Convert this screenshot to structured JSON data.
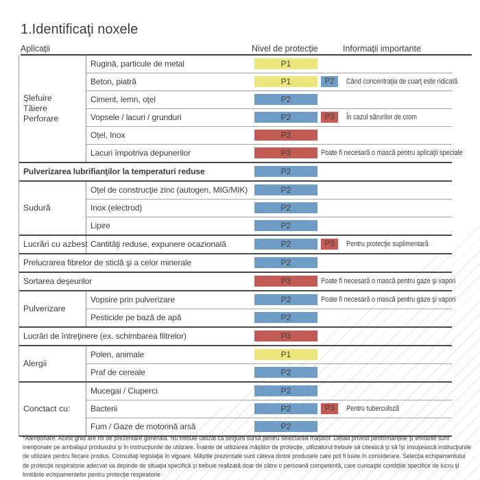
{
  "title": "1.Identificaţi noxele",
  "columns": {
    "applications": "Aplicaţii",
    "protection_level": "Nivel de protecţie",
    "important_info": "Informaţii importante"
  },
  "colors": {
    "p1": "#ebe77d",
    "p2": "#6f9dc6",
    "p3": "#c15b53",
    "rule_dark": "#4a4a4a",
    "rule_light": "#a3a3a3"
  },
  "table": {
    "groups": [
      {
        "category": "Şlefuire\nTăiere\nPerforare",
        "rows": [
          {
            "label": "Rugină, particule de metal",
            "level": "P1",
            "badge": null,
            "info": null
          },
          {
            "label": "Beton, piatră",
            "level": "P1",
            "badge": "P2",
            "info": "Când concentraţia de cuarţ este ridicată"
          },
          {
            "label": "Ciment, lemn, oţel",
            "level": "P2",
            "badge": null,
            "info": null
          },
          {
            "label": "Vopsele / lacuri / grunduri",
            "level": "P2",
            "badge": "P3",
            "info": "În cazul sărurilor de crom"
          },
          {
            "label": "Oţel, Inox",
            "level": "P3",
            "badge": null,
            "info": null
          },
          {
            "label": "Lacuri împotriva depunerilor",
            "level": "P3",
            "badge": null,
            "info": "Poate fi necesară o mască pentru aplicaţii speciale"
          }
        ]
      },
      {
        "category": null,
        "bold": true,
        "rows": [
          {
            "label": "Pulverizarea lubrifianţilor la temperaturi reduse",
            "level": "P2",
            "badge": null,
            "info": null
          }
        ]
      },
      {
        "category": "Sudură",
        "rows": [
          {
            "label": "Oţel de construcţie zinc (autogen, MIG/MIK)",
            "level": "P2",
            "badge": null,
            "info": null
          },
          {
            "label": "Inox (electrod)",
            "level": "P2",
            "badge": null,
            "info": null
          },
          {
            "label": "Lipire",
            "level": "P2",
            "badge": null,
            "info": null
          }
        ]
      },
      {
        "category": "Lucrări cu azbest",
        "rows": [
          {
            "label": "Cantităţi reduse, expunere ocazională",
            "level": "P2",
            "badge": "P3",
            "info": "Pentru protecţie suplimentară"
          }
        ]
      },
      {
        "category": null,
        "rows": [
          {
            "label": "Prelucrarea fibrelor de sticlă şi a celor minerale",
            "level": "P2",
            "badge": null,
            "info": null
          }
        ]
      },
      {
        "category": null,
        "rows": [
          {
            "label": "Sortarea deşeurilor",
            "level": "P3",
            "badge": null,
            "info": "Poate fi necesară o mască pentru gaze şi vapori"
          }
        ]
      },
      {
        "category": "Pulverizare",
        "rows": [
          {
            "label": "Vopsire prin pulverizare",
            "level": "P2",
            "badge": null,
            "info": "Poate fi necesară o mască pentru gaze şi vapori"
          },
          {
            "label": "Pesticide pe bază de apă",
            "level": "P2",
            "badge": null,
            "info": null
          }
        ]
      },
      {
        "category": null,
        "rows": [
          {
            "label": "Lucrări de întreţinere (ex. schimbarea filtrelor)",
            "level": "P3",
            "badge": null,
            "info": null
          }
        ]
      },
      {
        "category": "Alergii",
        "rows": [
          {
            "label": "Polen, animale",
            "level": "P1",
            "badge": null,
            "info": null
          },
          {
            "label": "Praf de cereale",
            "level": "P2",
            "badge": null,
            "info": null
          }
        ]
      },
      {
        "category": "Conctact cu:",
        "rows": [
          {
            "label": "Mucegai / Ciuperci",
            "level": "P2",
            "badge": null,
            "info": null
          },
          {
            "label": "Bacterii",
            "level": "P2",
            "badge": "P3",
            "info": "Pentru tuberculoză"
          },
          {
            "label": "Fum / Gaze de motorină arsă",
            "level": "P2",
            "badge": null,
            "info": null
          }
        ]
      }
    ]
  },
  "footnote": "*Atenţionare: Acest ghid are rol de prezentare generală. Nu trebuie utilizat ca singura sursă pentru selectarea măştilor. Detalii privind performanţele şi limitările sunt menţionate pe ambalajul produsului şi în instrucţiunile de utilizare. Înainte de utilizarea măştilor de protecţie, utilizatorul trebuie să citească şi să îşi însuşească instrucţiunile de utilizare pentru fiecare produs. Consultaţi legislaţia în vigoare. Măştile prezentate sunt câteva dintre produsele care pot fi luate în considerare. Selecţia echipamentului de protecţie respiratorie adecvat va depinde de situaţia specifică şi trebuie realizată doar de către o persoană competentă, care cunoaşte condiţiile specifice de lucru şi limitările echipamentelor pentru protecţie respiratorie"
}
